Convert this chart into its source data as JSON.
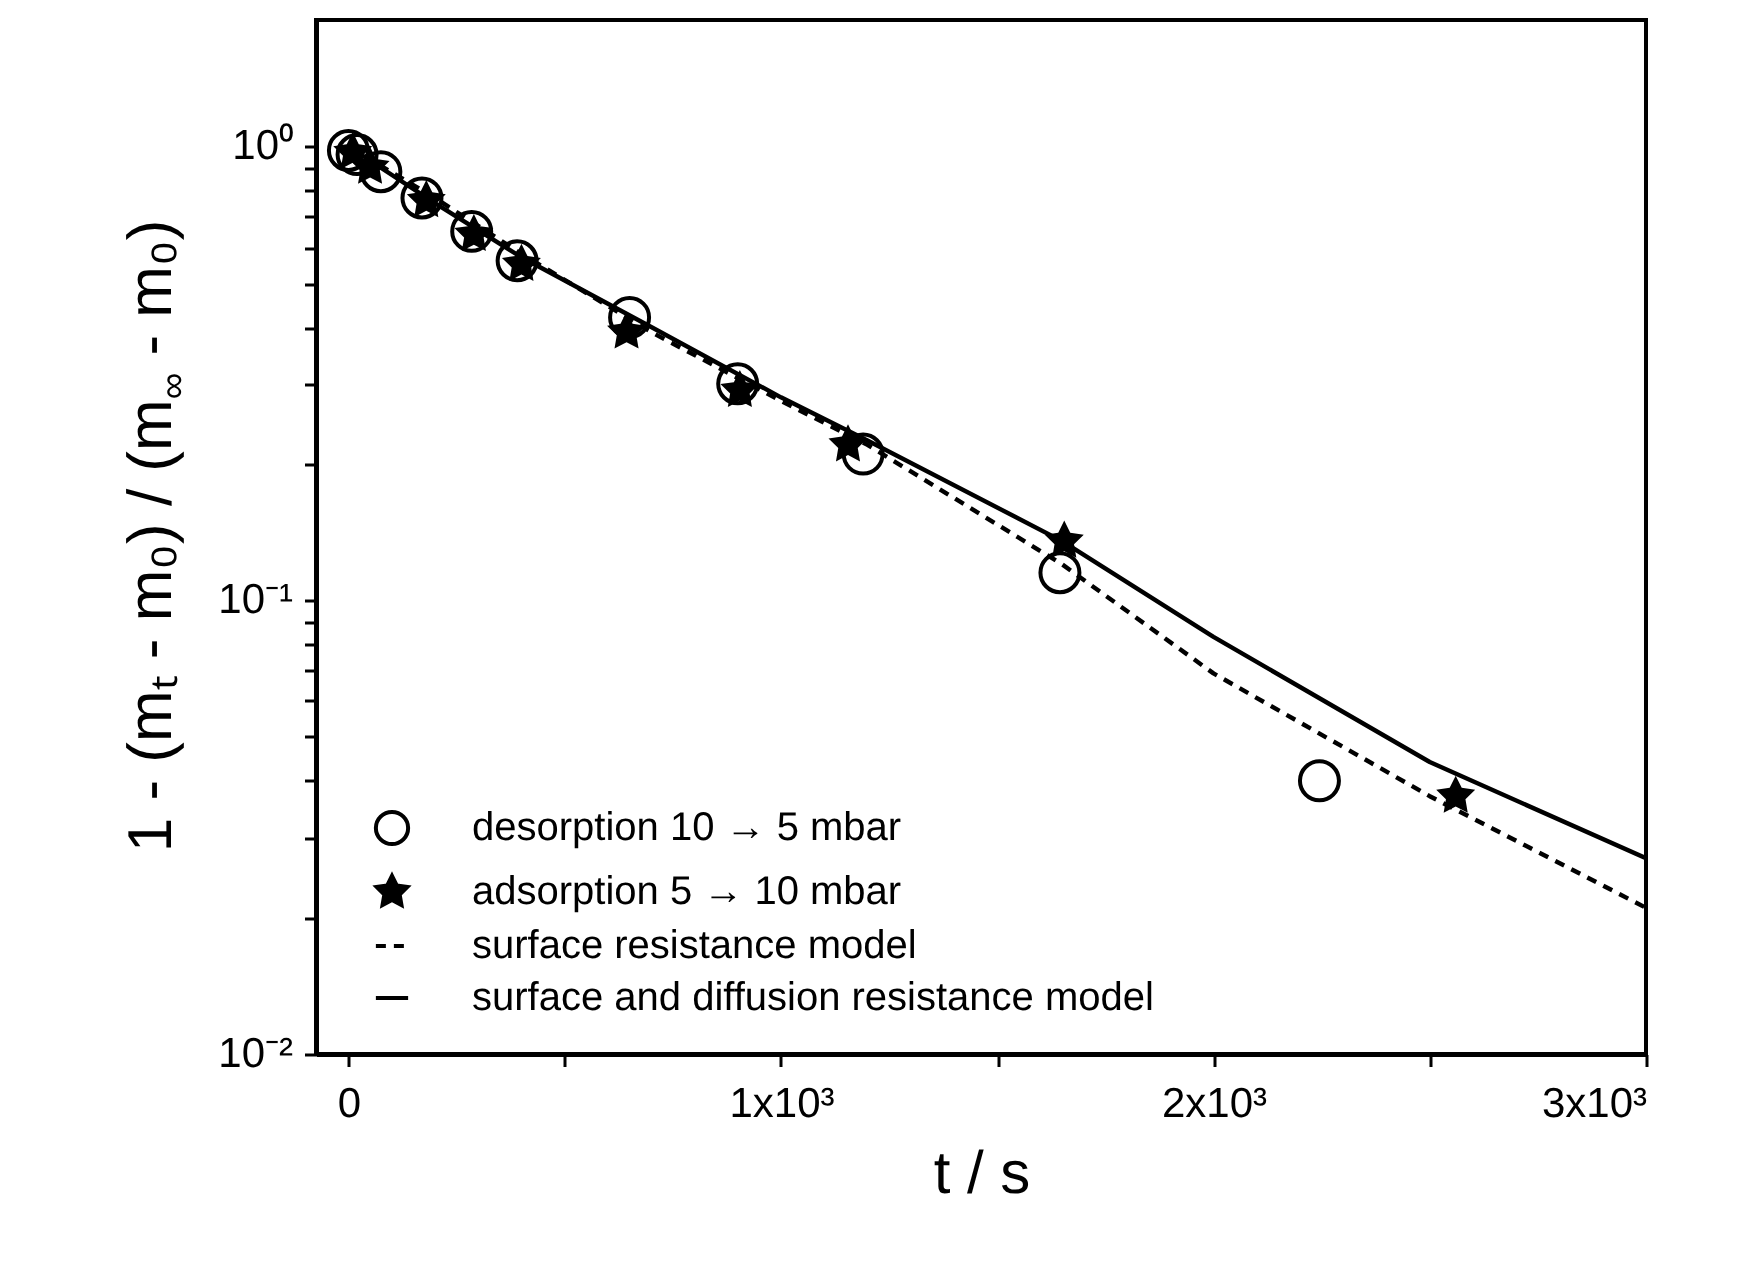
{
  "chart_data": {
    "type": "scatter",
    "xlabel": "t  / s",
    "ylabel": "1 - (mₜ - m₀) / (m$_{∞}$ - m₀)",
    "log": "y",
    "grid": false,
    "legend": "bottom left",
    "xlim": [
      -75,
      3000
    ],
    "ylim": [
      0.01,
      1.9
    ],
    "xticks": [
      0,
      {
        "value": 500,
        "label": null
      },
      {
        "value": 1000,
        "label": "1x10³"
      },
      {
        "value": 1500,
        "label": null
      },
      {
        "value": 2000,
        "label": "2x10³"
      },
      {
        "value": 2500,
        "label": null
      },
      {
        "value": 3000,
        "label": "3x10³"
      }
    ],
    "yticks": [
      {
        "value": 0.01,
        "label": "10⁻²"
      },
      {
        "value": 0.02,
        "label": null
      },
      {
        "value": 0.03,
        "label": null
      },
      {
        "value": 0.04,
        "label": null
      },
      {
        "value": 0.05,
        "label": null
      },
      {
        "value": 0.06,
        "label": null
      },
      {
        "value": 0.07,
        "label": null
      },
      {
        "value": 0.08,
        "label": null
      },
      {
        "value": 0.09,
        "label": null
      },
      {
        "value": 0.1,
        "label": "10⁻¹"
      },
      {
        "value": 0.2,
        "label": null
      },
      {
        "value": 0.3,
        "label": null
      },
      {
        "value": 0.4,
        "label": null
      },
      {
        "value": 0.5,
        "label": null
      },
      {
        "value": 0.6,
        "label": null
      },
      {
        "value": 0.7,
        "label": null
      },
      {
        "value": 0.8,
        "label": null
      },
      {
        "value": 0.9,
        "label": null
      },
      {
        "value": 1,
        "label": "10⁰"
      }
    ],
    "series": [
      {
        "name": "desorption 10 → 5 mbar",
        "marker": "circle",
        "color": "#000000",
        "x": [
          0,
          20,
          75,
          170,
          285,
          390,
          650,
          900,
          1190,
          1645,
          2245
        ],
        "values": [
          0.98,
          0.96,
          0.88,
          0.77,
          0.65,
          0.56,
          0.42,
          0.3,
          0.21,
          0.115,
          0.04
        ]
      },
      {
        "name": "adsorption 5 → 10 mbar",
        "marker": "star",
        "color": "#000000",
        "x": [
          10,
          50,
          180,
          290,
          400,
          643,
          905,
          1155,
          1655,
          2560
        ],
        "values": [
          0.97,
          0.9,
          0.76,
          0.64,
          0.55,
          0.39,
          0.29,
          0.22,
          0.135,
          0.037
        ]
      },
      {
        "name": "surface resistance model",
        "type": "line",
        "marker": "none",
        "line_style": "dashed",
        "color": "#000000",
        "x": [
          0,
          200,
          400,
          700,
          1000,
          1200,
          1650,
          2000,
          2500,
          3000
        ],
        "values": [
          1.0,
          0.77,
          0.58,
          0.39,
          0.275,
          0.22,
          0.12,
          0.069,
          0.037,
          0.021
        ]
      },
      {
        "name": "surface and diffusion resistance model",
        "type": "line",
        "marker": "none",
        "line_style": "solid",
        "color": "#000000",
        "x": [
          0,
          200,
          400,
          700,
          1000,
          1200,
          1650,
          2000,
          2500,
          3000
        ],
        "values": [
          1.0,
          0.75,
          0.57,
          0.4,
          0.28,
          0.225,
          0.135,
          0.083,
          0.044,
          0.027
        ]
      }
    ]
  }
}
